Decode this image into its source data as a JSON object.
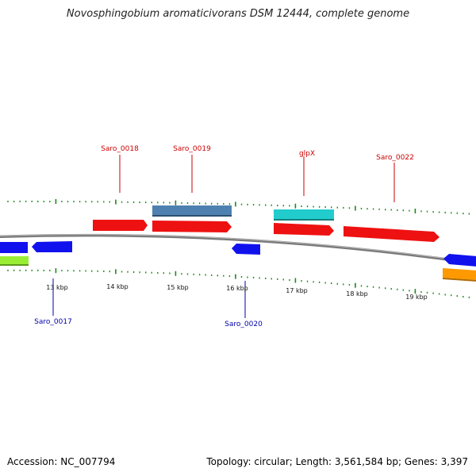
{
  "title": "Novosphingobium aromaticivorans DSM 12444, complete genome",
  "accession_text": "Accession: NC_007794",
  "summary_text": "Topology: circular; Length: 3,561,584 bp; Genes: 3,397",
  "scale": {
    "ticks": [
      {
        "label": "13 kbp"
      },
      {
        "label": "14 kbp"
      },
      {
        "label": "15 kbp"
      },
      {
        "label": "16 kbp"
      },
      {
        "label": "17 kbp"
      },
      {
        "label": "18 kbp"
      },
      {
        "label": "19 kbp"
      }
    ]
  },
  "labels": {
    "forward": [
      "Saro_0018",
      "Saro_0019",
      "glpX",
      "Saro_0022"
    ],
    "reverse": [
      "Saro_0017",
      "Saro_0020"
    ]
  },
  "colors": {
    "forward_label": "#cc0000",
    "reverse_label": "#0000aa",
    "backbone": "#808080",
    "tick": "#1a8a1a",
    "forward_gene": "#ee1111",
    "reverse_gene": "#1111ee",
    "cds_steelblue": "#4f81b0",
    "cds_cyan": "#22cccc",
    "cds_lime": "#99ee33",
    "cds_orange": "#ff9900"
  }
}
